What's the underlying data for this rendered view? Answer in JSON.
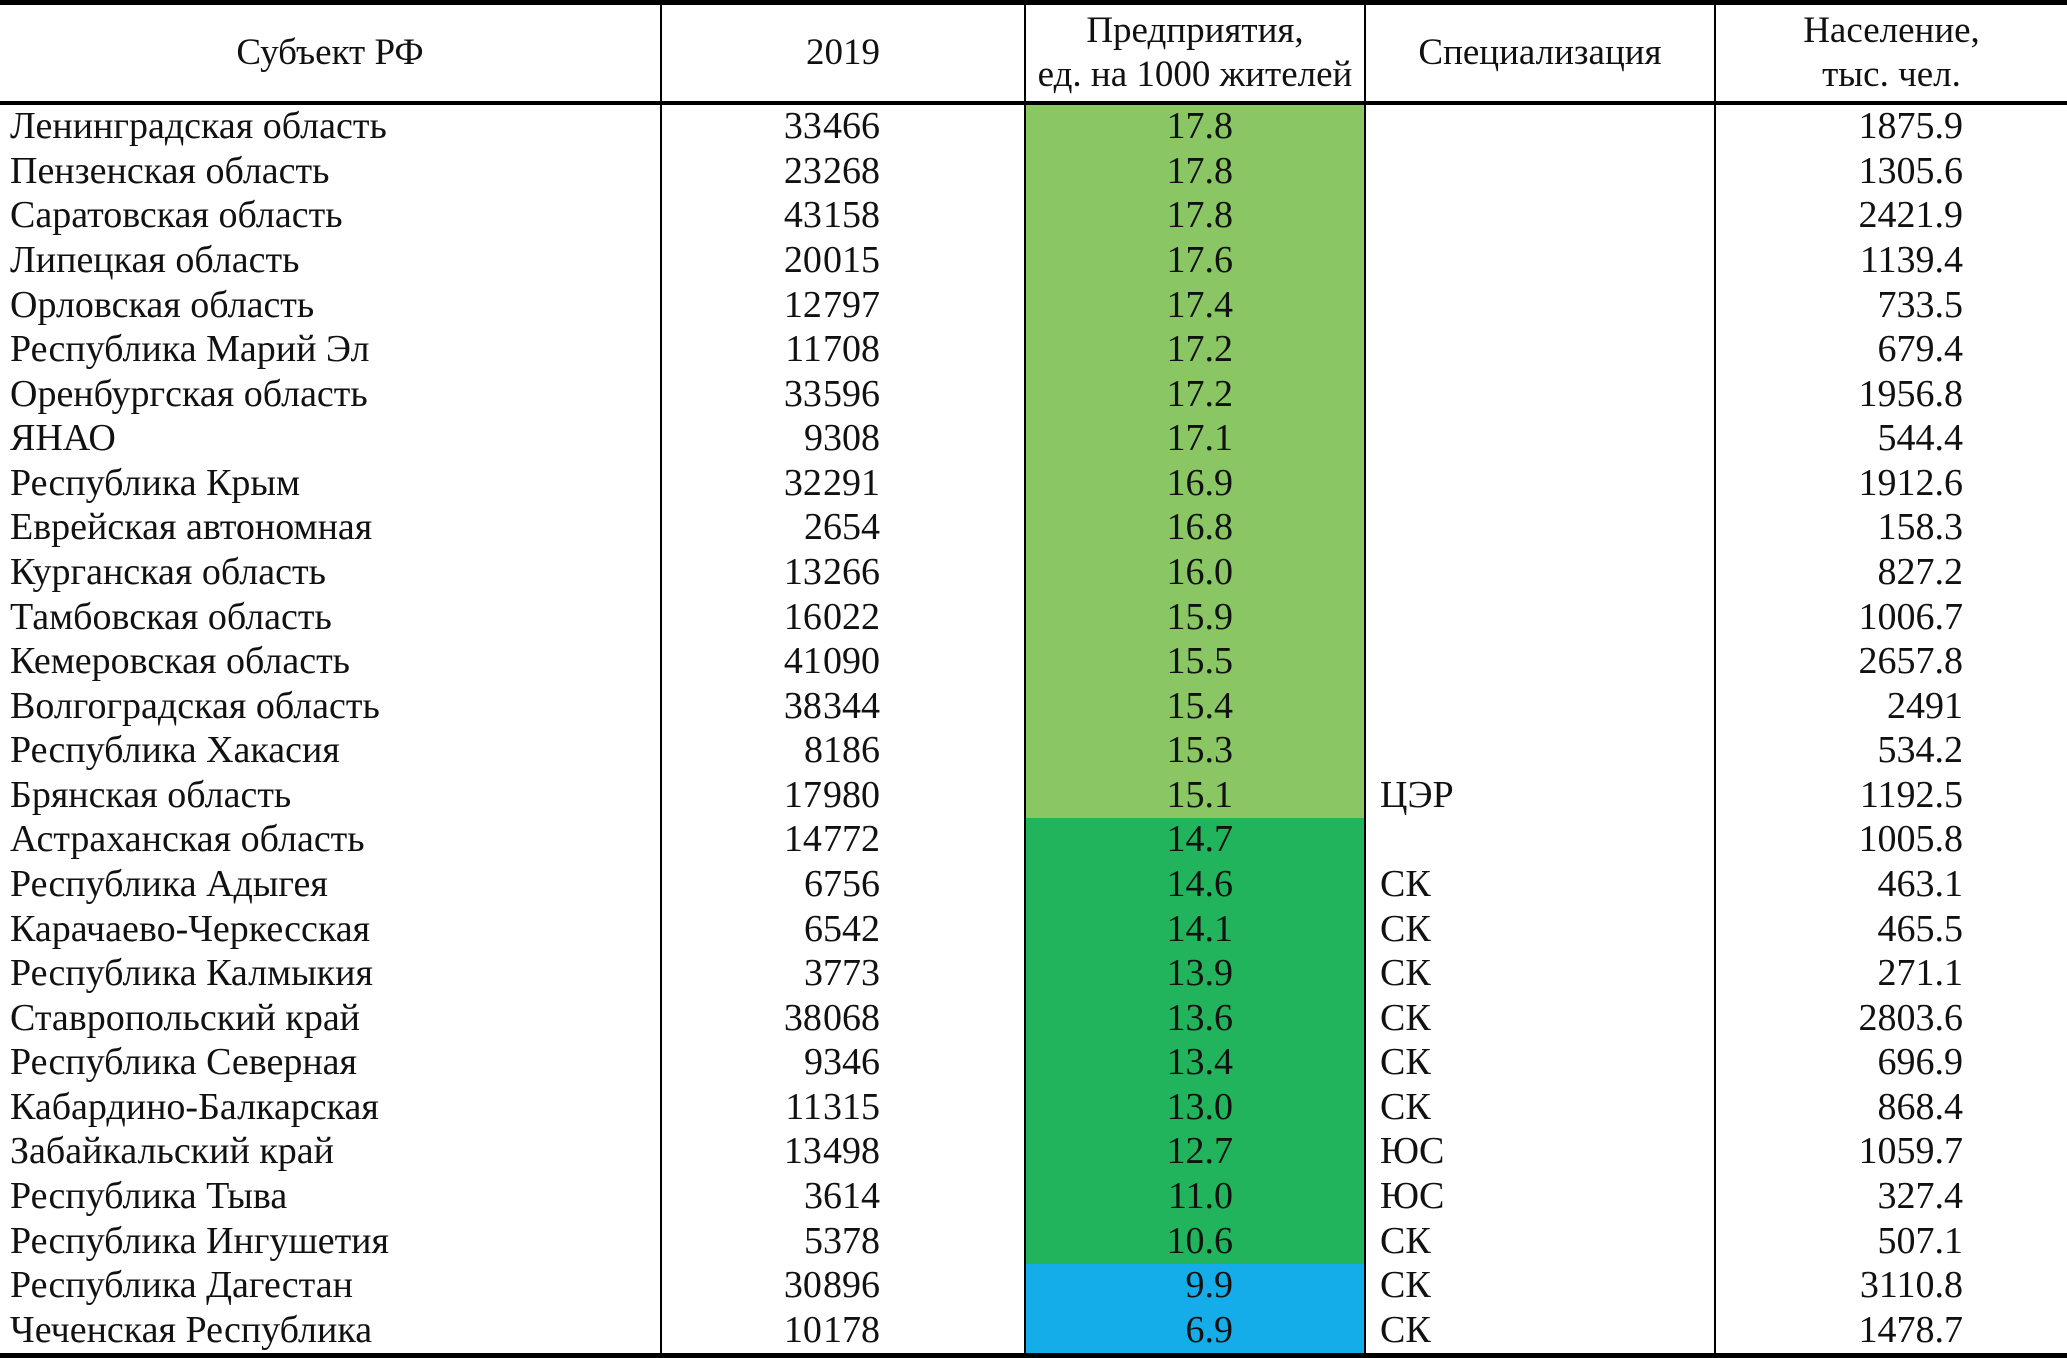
{
  "table": {
    "columns": [
      {
        "label": "Субъект  РФ"
      },
      {
        "label": "2019"
      },
      {
        "label": "Предприятия,\nед. на 1000 жителей"
      },
      {
        "label": "Специализация"
      },
      {
        "label": "Население,\nтыс. чел."
      }
    ],
    "rows": [
      {
        "region": "Ленинградская область",
        "year2019": "33 466",
        "enterprises": "17.8",
        "specialization": "",
        "population": "1875.9",
        "band": "light_green"
      },
      {
        "region": "Пензенская область",
        "year2019": "23 268",
        "enterprises": "17.8",
        "specialization": "",
        "population": "1305.6",
        "band": "light_green"
      },
      {
        "region": "Саратовская область",
        "year2019": "43 158",
        "enterprises": "17.8",
        "specialization": "",
        "population": "2421.9",
        "band": "light_green"
      },
      {
        "region": "Липецкая область",
        "year2019": "20 015",
        "enterprises": "17.6",
        "specialization": "",
        "population": "1139.4",
        "band": "light_green"
      },
      {
        "region": "Орловская область",
        "year2019": "12 797",
        "enterprises": "17.4",
        "specialization": "",
        "population": "733.5",
        "band": "light_green"
      },
      {
        "region": "Республика Марий Эл",
        "year2019": "11 708",
        "enterprises": "17.2",
        "specialization": "",
        "population": "679.4",
        "band": "light_green"
      },
      {
        "region": "Оренбургская область",
        "year2019": "33 596",
        "enterprises": "17.2",
        "specialization": "",
        "population": "1956.8",
        "band": "light_green"
      },
      {
        "region": "ЯНАО",
        "year2019": "9308",
        "enterprises": "17.1",
        "specialization": "",
        "population": "544.4",
        "band": "light_green"
      },
      {
        "region": "Республика Крым",
        "year2019": "32 291",
        "enterprises": "16.9",
        "specialization": "",
        "population": "1912.6",
        "band": "light_green"
      },
      {
        "region": "Еврейская автономная",
        "year2019": "2654",
        "enterprises": "16.8",
        "specialization": "",
        "population": "158.3",
        "band": "light_green"
      },
      {
        "region": "Курганская область",
        "year2019": "13 266",
        "enterprises": "16.0",
        "specialization": "",
        "population": "827.2",
        "band": "light_green"
      },
      {
        "region": "Тамбовская область",
        "year2019": "16 022",
        "enterprises": "15.9",
        "specialization": "",
        "population": "1006.7",
        "band": "light_green"
      },
      {
        "region": "Кемеровская область",
        "year2019": "41 090",
        "enterprises": "15.5",
        "specialization": "",
        "population": "2657.8",
        "band": "light_green"
      },
      {
        "region": "Волгоградская область",
        "year2019": "38 344",
        "enterprises": "15.4",
        "specialization": "",
        "population": "2491",
        "band": "light_green"
      },
      {
        "region": "Республика Хакасия",
        "year2019": "8186",
        "enterprises": "15.3",
        "specialization": "",
        "population": "534.2",
        "band": "light_green"
      },
      {
        "region": "Брянская область",
        "year2019": "17 980",
        "enterprises": "15.1",
        "specialization": "ЦЭР",
        "population": "1192.5",
        "band": "light_green"
      },
      {
        "region": "Астраханская область",
        "year2019": "14 772",
        "enterprises": "14.7",
        "specialization": "",
        "population": "1005.8",
        "band": "green"
      },
      {
        "region": "Республика Адыгея",
        "year2019": "6756",
        "enterprises": "14.6",
        "specialization": "СК",
        "population": "463.1",
        "band": "green"
      },
      {
        "region": "Карачаево-Черкесская",
        "year2019": "6542",
        "enterprises": "14.1",
        "specialization": "СК",
        "population": "465.5",
        "band": "green"
      },
      {
        "region": "Республика Калмыкия",
        "year2019": "3773",
        "enterprises": "13.9",
        "specialization": "СК",
        "population": "271.1",
        "band": "green"
      },
      {
        "region": "Ставропольский край",
        "year2019": "38 068",
        "enterprises": "13.6",
        "specialization": "СК",
        "population": "2803.6",
        "band": "green"
      },
      {
        "region": "Республика Северная",
        "year2019": "9346",
        "enterprises": "13.4",
        "specialization": "СК",
        "population": "696.9",
        "band": "green"
      },
      {
        "region": "Кабардино-Балкарская",
        "year2019": "11 315",
        "enterprises": "13.0",
        "specialization": "СК",
        "population": "868.4",
        "band": "green"
      },
      {
        "region": "Забайкальский край",
        "year2019": "13 498",
        "enterprises": "12.7",
        "specialization": "ЮС",
        "population": "1059.7",
        "band": "green"
      },
      {
        "region": "Республика Тыва",
        "year2019": "3614",
        "enterprises": "11.0",
        "specialization": "ЮС",
        "population": "327.4",
        "band": "green"
      },
      {
        "region": "Республика Ингушетия",
        "year2019": "5378",
        "enterprises": "10.6",
        "specialization": "СК",
        "population": "507.1",
        "band": "green"
      },
      {
        "region": "Республика Дагестан",
        "year2019": "30 896",
        "enterprises": "9.9",
        "specialization": "СК",
        "population": "3110.8",
        "band": "blue"
      },
      {
        "region": "Чеченская Республика",
        "year2019": "10 178",
        "enterprises": "6.9",
        "specialization": "СК",
        "population": "1478.7",
        "band": "blue"
      }
    ]
  },
  "colors": {
    "light_green": "#8ac663",
    "green": "#22b35d",
    "blue": "#14ade9",
    "border": "#000000",
    "text": "#111111"
  }
}
